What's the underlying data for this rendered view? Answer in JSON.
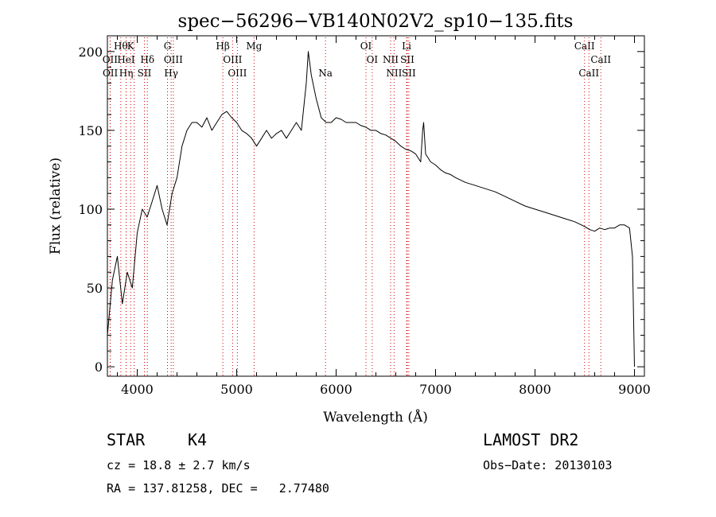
{
  "chart_data": {
    "type": "line",
    "title": "spec−56296−VB140N02V2_sp10−135.fits",
    "xlabel": "Wavelength (Å)",
    "ylabel": "Flux (relative)",
    "xlim": [
      3700,
      9100
    ],
    "ylim": [
      -6,
      210
    ],
    "x_ticks": [
      4000,
      5000,
      6000,
      7000,
      8000,
      9000
    ],
    "y_ticks": [
      0,
      50,
      100,
      150,
      200
    ],
    "grid": false,
    "line_color": "#000000",
    "marker_color": "#cc0000",
    "series": [
      {
        "x": [
          3700,
          3750,
          3800,
          3850,
          3900,
          3950,
          4000,
          4050,
          4100,
          4150,
          4200,
          4250,
          4300,
          4350,
          4400,
          4450,
          4500,
          4550,
          4600,
          4650,
          4700,
          4750,
          4800,
          4850,
          4900,
          4950,
          5000,
          5050,
          5100,
          5150,
          5200,
          5250,
          5300,
          5350,
          5400,
          5450,
          5500,
          5550,
          5600,
          5650,
          5700,
          5720,
          5750,
          5800,
          5850,
          5900,
          5950,
          6000,
          6050,
          6100,
          6150,
          6200,
          6250,
          6300,
          6350,
          6400,
          6450,
          6500,
          6550,
          6600,
          6650,
          6700,
          6750,
          6800,
          6850,
          6870,
          6880,
          6900,
          6950,
          7000,
          7050,
          7100,
          7150,
          7200,
          7300,
          7400,
          7500,
          7600,
          7700,
          7800,
          7900,
          8000,
          8100,
          8200,
          8300,
          8400,
          8500,
          8550,
          8600,
          8650,
          8700,
          8750,
          8800,
          8850,
          8900,
          8950,
          8980,
          9000
        ],
        "y": [
          20,
          55,
          70,
          40,
          60,
          50,
          85,
          100,
          95,
          105,
          115,
          100,
          90,
          110,
          120,
          140,
          150,
          155,
          155,
          152,
          158,
          150,
          155,
          160,
          162,
          158,
          155,
          150,
          148,
          145,
          140,
          145,
          150,
          145,
          148,
          150,
          145,
          150,
          155,
          150,
          180,
          200,
          185,
          170,
          158,
          155,
          155,
          158,
          157,
          155,
          155,
          155,
          153,
          152,
          150,
          150,
          148,
          147,
          145,
          143,
          140,
          138,
          137,
          135,
          130,
          150,
          155,
          135,
          130,
          128,
          125,
          123,
          122,
          120,
          117,
          115,
          113,
          111,
          108,
          105,
          102,
          100,
          98,
          96,
          94,
          92,
          89,
          87,
          86,
          88,
          87,
          88,
          88,
          90,
          90,
          88,
          70,
          0
        ]
      }
    ],
    "line_markers": [
      {
        "wl": 3835,
        "label": "Hθ",
        "row": 1
      },
      {
        "wl": 3727,
        "label": "OII",
        "row": 2
      },
      {
        "wl": 3889,
        "label": "Hη",
        "row": 3
      },
      {
        "wl": 3729,
        "label": "OII",
        "row": 3
      },
      {
        "wl": 3934,
        "label": "K",
        "row": 1
      },
      {
        "wl": 3969,
        "label": "",
        "row": 0
      },
      {
        "wl": 3888,
        "label": "HeI",
        "row": 2
      },
      {
        "wl": 4102,
        "label": "Hδ",
        "row": 2
      },
      {
        "wl": 4072,
        "label": "SII",
        "row": 3
      },
      {
        "wl": 4304,
        "label": "G",
        "row": 1
      },
      {
        "wl": 4363,
        "label": "OIII",
        "row": 2
      },
      {
        "wl": 4341,
        "label": "Hγ",
        "row": 3
      },
      {
        "wl": 4861,
        "label": "Hβ",
        "row": 1
      },
      {
        "wl": 4959,
        "label": "OIII",
        "row": 2
      },
      {
        "wl": 5007,
        "label": "OIII",
        "row": 3
      },
      {
        "wl": 5175,
        "label": "Mg",
        "row": 1
      },
      {
        "wl": 5893,
        "label": "Na",
        "row": 3
      },
      {
        "wl": 6300,
        "label": "OI",
        "row": 1
      },
      {
        "wl": 6363,
        "label": "OI",
        "row": 2
      },
      {
        "wl": 6548,
        "label": "NII",
        "row": 2
      },
      {
        "wl": 6583,
        "label": "NII",
        "row": 3
      },
      {
        "wl": 6708,
        "label": "Li",
        "row": 1
      },
      {
        "wl": 6716,
        "label": "SII",
        "row": 2
      },
      {
        "wl": 6731,
        "label": "SII",
        "row": 3
      },
      {
        "wl": 8498,
        "label": "CaII",
        "row": 1
      },
      {
        "wl": 8542,
        "label": "CaII",
        "row": 3
      },
      {
        "wl": 8662,
        "label": "CaII",
        "row": 2
      }
    ]
  },
  "info": {
    "object": "STAR",
    "subclass": "K4",
    "survey": "LAMOST DR2",
    "cz": "cz = 18.8 ± 2.7 km/s",
    "obs_date": "Obs−Date: 20130103",
    "coords": "RA = 137.81258, DEC =   2.77480"
  }
}
